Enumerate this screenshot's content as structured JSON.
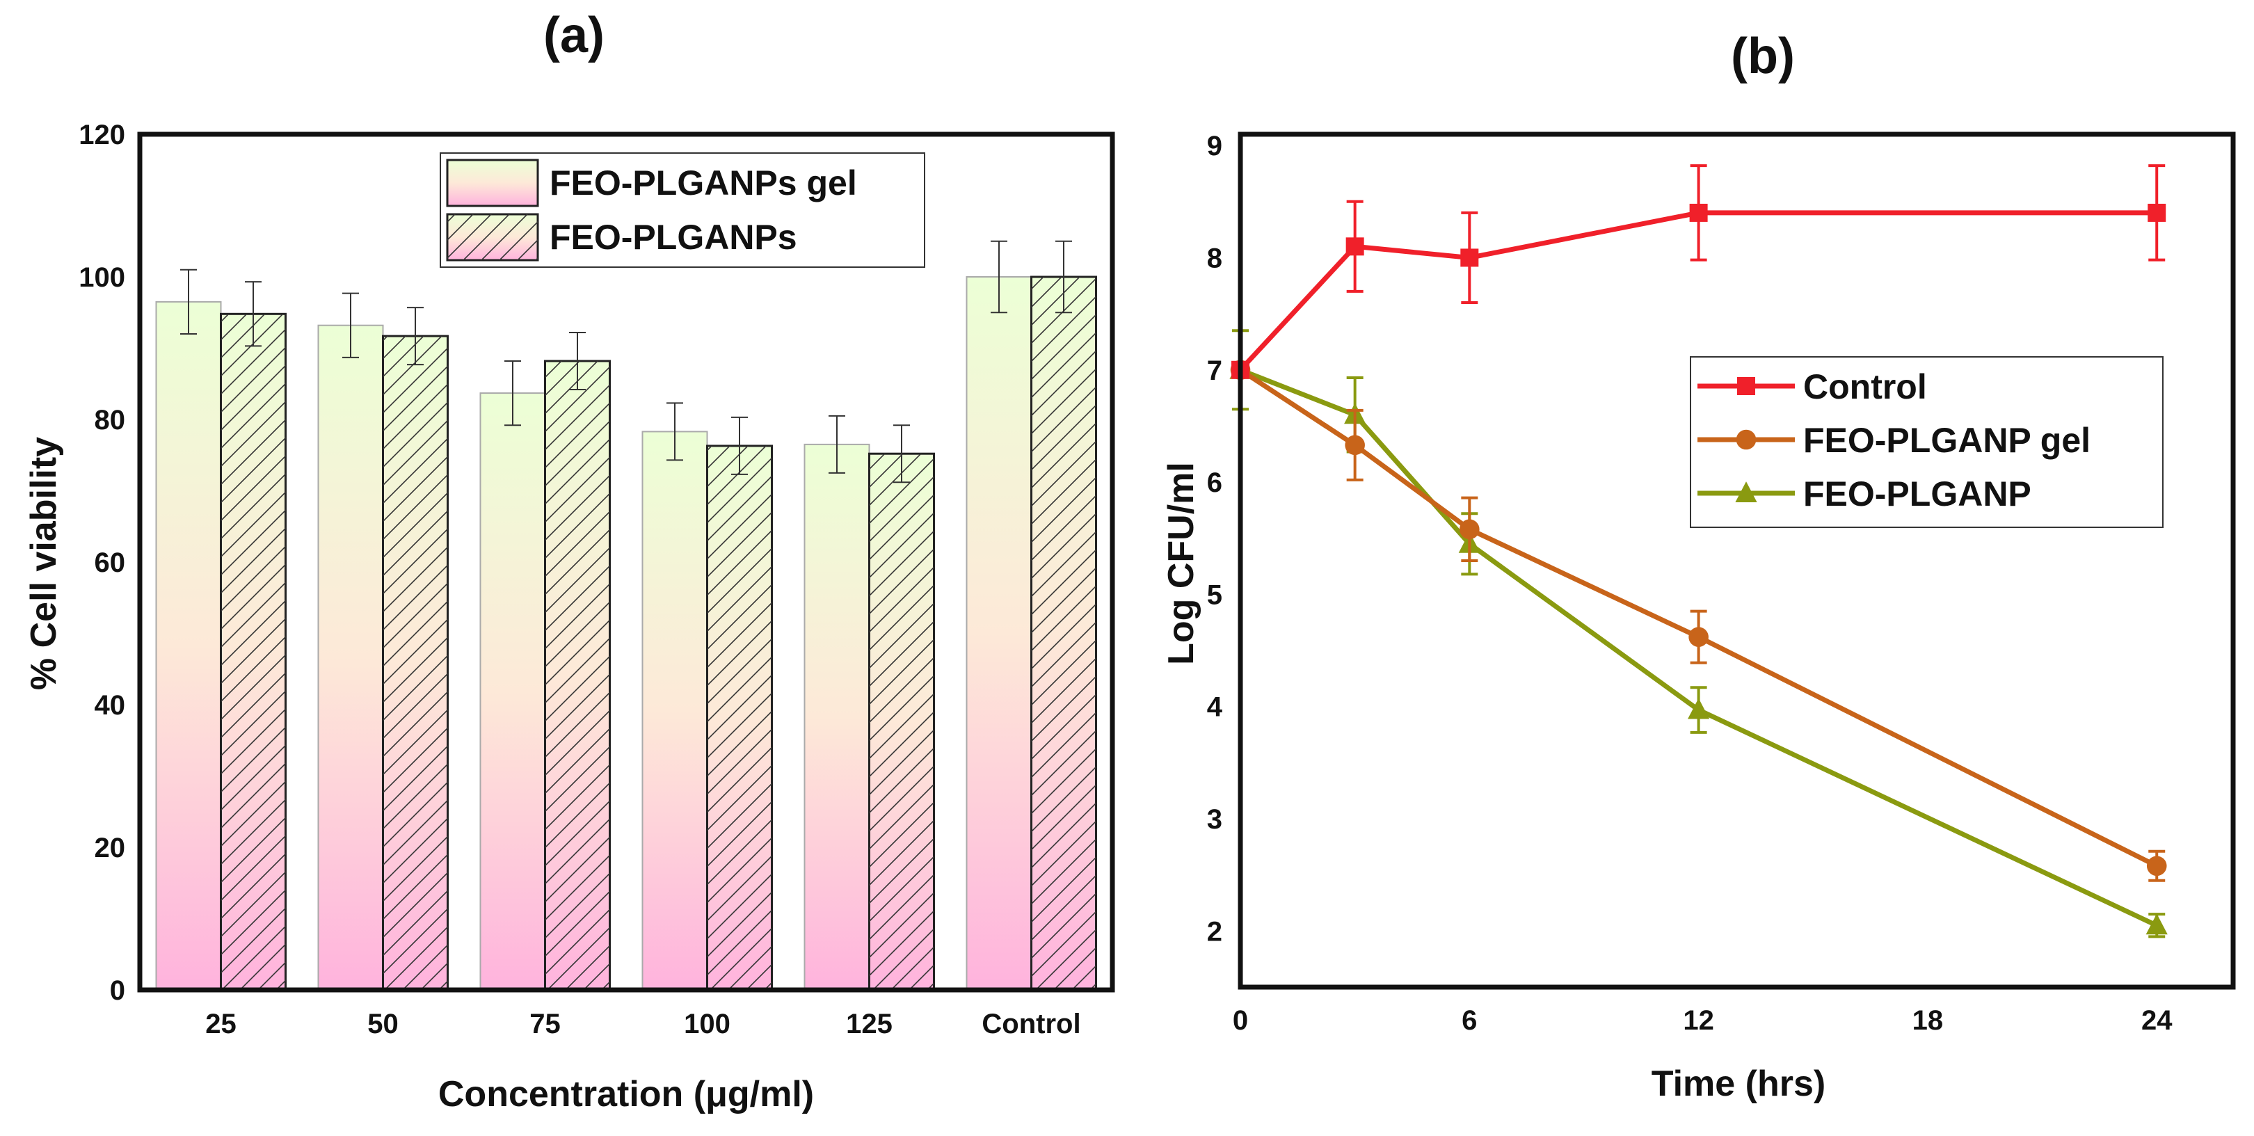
{
  "chart_data": [
    {
      "panel_label": "(a)",
      "type": "bar",
      "title": "",
      "xlabel": "Concentration (μg/ml)",
      "ylabel": "% Cell viability",
      "ylim": [
        0,
        120
      ],
      "yticks": [
        "0",
        "20",
        "40",
        "60",
        "80",
        "100",
        "120"
      ],
      "categories": [
        "25",
        "50",
        "75",
        "100",
        "125",
        "Control"
      ],
      "legend_position": "top-center",
      "series": [
        {
          "name": "FEO-PLGANPs gel",
          "pattern": "solid",
          "values": [
            96.5,
            93.2,
            83.7,
            78.3,
            76.5,
            100
          ],
          "errors": [
            4.5,
            4.5,
            4.5,
            4,
            4,
            5
          ]
        },
        {
          "name": "FEO-PLGANPs",
          "pattern": "hatched",
          "values": [
            94.8,
            91.7,
            88.2,
            76.3,
            75.2,
            100
          ],
          "errors": [
            4.5,
            4,
            4,
            4,
            4,
            5
          ]
        }
      ],
      "colors": {
        "fill_top": "#ecffd6",
        "fill_mid": "#fde9d8",
        "fill_bottom": "#ffb3dd"
      }
    },
    {
      "panel_label": "(b)",
      "type": "line",
      "title": "",
      "xlabel": "Time (hrs)",
      "ylabel": "Log CFU/ml",
      "xlim": [
        0,
        26
      ],
      "ylim": [
        1.5,
        9.1
      ],
      "xticks": [
        "0",
        "6",
        "12",
        "18",
        "24"
      ],
      "yticks": [
        "2",
        "3",
        "4",
        "5",
        "6",
        "7",
        "8",
        "9"
      ],
      "legend_position": "center-right",
      "x": [
        0,
        3,
        6,
        12,
        24
      ],
      "series": [
        {
          "name": "Control",
          "marker": "square",
          "color": "#f0202a",
          "values": [
            7.0,
            8.1,
            8.0,
            8.4,
            8.4
          ],
          "errors": [
            0,
            0.4,
            0.4,
            0.42,
            0.42
          ]
        },
        {
          "name": "FEO-PLGANP gel",
          "marker": "circle",
          "color": "#c8641a",
          "values": [
            7.0,
            6.33,
            5.58,
            4.62,
            2.58
          ],
          "errors": [
            0,
            0.31,
            0.28,
            0.23,
            0.13
          ]
        },
        {
          "name": "FEO-PLGANP",
          "marker": "triangle",
          "color": "#8a9a10",
          "values": [
            7.0,
            6.6,
            5.45,
            3.97,
            2.05
          ],
          "errors": [
            0.35,
            0.33,
            0.27,
            0.2,
            0.1
          ]
        }
      ]
    }
  ]
}
